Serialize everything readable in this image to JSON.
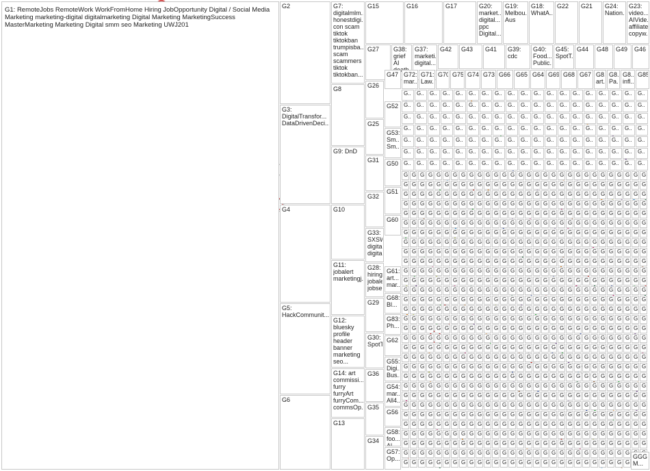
{
  "groups": [
    {
      "id": "G1",
      "label": "G1: RemoteJobs RemoteWork WorkFromHome Hiring JobOpportunity Digital / Social Media Marketing marketing-digital digitalmarketing Digital Marketing MarketingSuccess MasterMarketing Marketing Digital smm seo Marketing UWJ201",
      "color": "#0a1a6e"
    },
    {
      "id": "G2",
      "label": "G2",
      "color": "#2a8fd8"
    },
    {
      "id": "G3",
      "label": "G3: DigitalTransfor... DataDrivenDeci...",
      "color": "#0a5a2a"
    },
    {
      "id": "G4",
      "label": "G4",
      "color": "#17a629"
    },
    {
      "id": "G5",
      "label": "G5: HackCommunit...",
      "color": "#c0120a"
    },
    {
      "id": "G6",
      "label": "G6",
      "color": "#e07b10"
    },
    {
      "id": "G7",
      "label": "G7: digitalmlm... honestdigi... con scam tiktok tiktokban trumpisba... scam scammers tiktok tiktokban...",
      "color": "#1a3a9a"
    },
    {
      "id": "G8",
      "label": "G8",
      "color": "#a0b020"
    },
    {
      "id": "G9",
      "label": "G9: DnD",
      "color": "#c0186a"
    },
    {
      "id": "G10",
      "label": "G10",
      "color": "#5a2a7a"
    },
    {
      "id": "G11",
      "label": "G11: jobalert marketingj...",
      "color": "#3a2a9a"
    },
    {
      "id": "G12",
      "label": "G12: bluesky profile header banner marketing seo...",
      "color": "#2a2a8a"
    },
    {
      "id": "G14",
      "label": "G14: art commissi... furry furryArt furryCom... commsOp...",
      "color": "#8a4a1a"
    },
    {
      "id": "G13",
      "label": "G13",
      "color": "#1a2a8a"
    },
    {
      "id": "G15",
      "label": "G15",
      "color": "#1a8a3a"
    },
    {
      "id": "G16",
      "label": "G16",
      "color": "#17a629"
    },
    {
      "id": "G17",
      "label": "G17",
      "color": "#c0120a"
    },
    {
      "id": "G20",
      "label": "G20: market... digital... ppc Digital...",
      "color": "#5a3a1a"
    },
    {
      "id": "G19",
      "label": "G19: Melbou... Aus",
      "color": "#e07b10"
    },
    {
      "id": "G18",
      "label": "G18: WhatA...",
      "color": "#a0b020"
    },
    {
      "id": "G22",
      "label": "G22",
      "color": "#c0186a"
    },
    {
      "id": "G21",
      "label": "G21",
      "color": "#5a2a7a"
    },
    {
      "id": "G24",
      "label": "G24: Nation...",
      "color": "#1a3a9a"
    },
    {
      "id": "G23",
      "label": "G23: video... AIVide... affiliate copyw...",
      "color": "#2a8fd8"
    },
    {
      "id": "G27",
      "label": "G27",
      "color": "#1a5a2a"
    },
    {
      "id": "G38",
      "label": "G38: grief AI death...",
      "color": "#0a5a2a"
    },
    {
      "id": "G37",
      "label": "G37: marketi... digital...",
      "color": "#c0120a"
    },
    {
      "id": "G42",
      "label": "G42",
      "color": "#e07b10"
    },
    {
      "id": "G43",
      "label": "G43",
      "color": "#a0b020"
    },
    {
      "id": "G41",
      "label": "G41",
      "color": "#c0186a"
    },
    {
      "id": "G39",
      "label": "G39: cdc",
      "color": "#5a2a7a"
    },
    {
      "id": "G40",
      "label": "G40: Food... Public...",
      "color": "#8a4a1a"
    },
    {
      "id": "G45",
      "label": "G45: SpotT...",
      "color": "#1a3a9a"
    },
    {
      "id": "G44",
      "label": "G44",
      "color": "#2a8fd8"
    },
    {
      "id": "G48",
      "label": "G48",
      "color": "#17a629"
    },
    {
      "id": "G49",
      "label": "G49",
      "color": "#0a1a6e"
    },
    {
      "id": "G46",
      "label": "G46",
      "color": "#c0120a"
    },
    {
      "id": "G26",
      "label": "G26",
      "color": "#2a8fd8"
    },
    {
      "id": "G47",
      "label": "G47",
      "color": "#a0b020"
    },
    {
      "id": "G72",
      "label": "G72: mar...",
      "color": "#c0186a"
    },
    {
      "id": "G71",
      "label": "G71: Law...",
      "color": "#5a2a7a"
    },
    {
      "id": "G70",
      "label": "G70",
      "color": "#1a3a9a"
    },
    {
      "id": "G75",
      "label": "G75",
      "color": "#17a629"
    },
    {
      "id": "G74",
      "label": "G74",
      "color": "#e07b10"
    },
    {
      "id": "G73",
      "label": "G73",
      "color": "#c0120a"
    },
    {
      "id": "G66",
      "label": "G66",
      "color": "#0a5a2a"
    },
    {
      "id": "G65",
      "label": "G65",
      "color": "#8a4a1a"
    },
    {
      "id": "G64",
      "label": "G64",
      "color": "#2a2a8a"
    },
    {
      "id": "G69",
      "label": "G69",
      "color": "#c0186a"
    },
    {
      "id": "G68",
      "label": "G68",
      "color": "#a0b020"
    },
    {
      "id": "G67",
      "label": "G67",
      "color": "#5a2a7a"
    },
    {
      "id": "G8x",
      "label": "G8... art...",
      "color": "#1a3a9a"
    },
    {
      "id": "G8y",
      "label": "G8... Pa...",
      "color": "#17a629"
    },
    {
      "id": "G8z",
      "label": "G8... infl...",
      "color": "#e07b10"
    },
    {
      "id": "G85",
      "label": "G85",
      "color": "#c0120a"
    },
    {
      "id": "G25",
      "label": "G25",
      "color": "#0a1a6e"
    },
    {
      "id": "G52",
      "label": "G52",
      "color": "#c0120a"
    },
    {
      "id": "G53",
      "label": "G53: Sm... Sm...",
      "color": "#2a8fd8"
    },
    {
      "id": "G31",
      "label": "G31",
      "color": "#e07b10"
    },
    {
      "id": "G50",
      "label": "G50",
      "color": "#1a3a9a"
    },
    {
      "id": "G51",
      "label": "G51",
      "color": "#a0b020"
    },
    {
      "id": "G32",
      "label": "G32",
      "color": "#17a629"
    },
    {
      "id": "G60",
      "label": "G60",
      "color": "#5a2a7a"
    },
    {
      "id": "G33",
      "label": "G33: SXSW digital digital...",
      "color": "#1a2a8a"
    },
    {
      "id": "G28",
      "label": "G28: hiring jobalert jobse...",
      "color": "#c0120a"
    },
    {
      "id": "G61",
      "label": "G61: art... mar...",
      "color": "#c0186a"
    },
    {
      "id": "G68b",
      "label": "G68: Bl...",
      "color": "#8a4a1a"
    },
    {
      "id": "G29",
      "label": "G29",
      "color": "#c0120a"
    },
    {
      "id": "G83",
      "label": "G83: Ph...",
      "color": "#2a8fd8"
    },
    {
      "id": "G62",
      "label": "G62",
      "color": "#0a5a2a"
    },
    {
      "id": "G30",
      "label": "G30: SpotT...",
      "color": "#e07b10"
    },
    {
      "id": "G55",
      "label": "G55: Digi... Bus...",
      "color": "#1a3a9a"
    },
    {
      "id": "G36",
      "label": "G36",
      "color": "#17a629"
    },
    {
      "id": "G54",
      "label": "G54: mar... All4...",
      "color": "#a0b020"
    },
    {
      "id": "G56",
      "label": "G56",
      "color": "#c0186a"
    },
    {
      "id": "G35",
      "label": "G35",
      "color": "#5a2a7a"
    },
    {
      "id": "G58",
      "label": "G58: foo... Al...",
      "color": "#e07b10"
    },
    {
      "id": "G34",
      "label": "G34",
      "color": "#1a3a9a"
    },
    {
      "id": "G57",
      "label": "G57: Op...",
      "color": "#8a4a1a"
    }
  ],
  "small_label": "G..",
  "bottom_right_label": "GGG M..."
}
